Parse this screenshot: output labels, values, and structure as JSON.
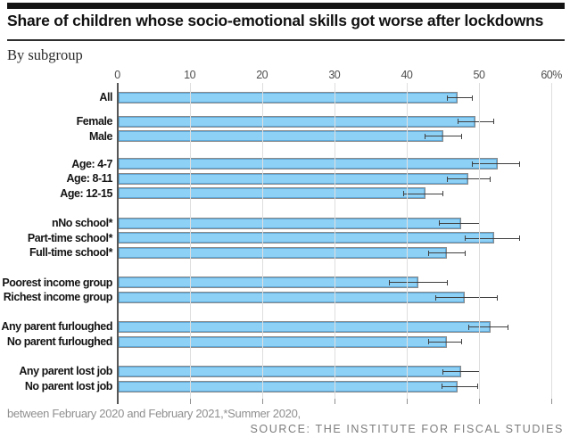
{
  "header": {
    "title": "Share of children whose socio-emotional skills got worse after lockdowns",
    "subtitle": "By subgroup"
  },
  "chart_data": {
    "type": "bar",
    "orientation": "horizontal",
    "title": "Share of children whose socio-emotional skills got worse after lockdowns",
    "subtitle": "By subgroup",
    "value_unit": "%",
    "xlim": [
      0,
      62.5
    ],
    "grid": true,
    "error_bars": true,
    "axis_position": "top",
    "axis_ticks": [
      0,
      10,
      20,
      30,
      40,
      50,
      60
    ],
    "axis_tick_labels": [
      "0",
      "10",
      "20",
      "30",
      "40",
      "50",
      "60%"
    ],
    "bar_color": "#8ED1F7",
    "bar_inner_edge_color": "#5FA9D9",
    "bar_outline_color": "#8A8A8A",
    "error_bar_color": "#3F3F3F",
    "groups": [
      {
        "rows": [
          {
            "label": "All",
            "value": 47,
            "ci_low": 45.5,
            "ci_high": 49
          }
        ]
      },
      {
        "rows": [
          {
            "label": "Female",
            "value": 49.5,
            "ci_low": 47,
            "ci_high": 52
          },
          {
            "label": "Male",
            "value": 45,
            "ci_low": 42.5,
            "ci_high": 47.5
          }
        ]
      },
      {
        "rows": [
          {
            "label": "Age: 4-7",
            "value": 52.5,
            "ci_low": 49,
            "ci_high": 55.5
          },
          {
            "label": "Age: 8-11",
            "value": 48.5,
            "ci_low": 45.5,
            "ci_high": 51.5
          },
          {
            "label": "Age: 12-15",
            "value": 42.5,
            "ci_low": 39.5,
            "ci_high": 45
          }
        ]
      },
      {
        "rows": [
          {
            "label": "nNo school*",
            "value": 47.5,
            "ci_low": 44.5,
            "ci_high": 50
          },
          {
            "label": "Part-time school*",
            "value": 52,
            "ci_low": 48,
            "ci_high": 55.5
          },
          {
            "label": "Full-time school*",
            "value": 45.5,
            "ci_low": 43,
            "ci_high": 48
          }
        ]
      },
      {
        "rows": [
          {
            "label": "Poorest income group",
            "value": 41.5,
            "ci_low": 37.5,
            "ci_high": 45.5
          },
          {
            "label": "Richest income group",
            "value": 48,
            "ci_low": 44,
            "ci_high": 52.5
          }
        ]
      },
      {
        "rows": [
          {
            "label": "Any parent furloughed",
            "value": 51.5,
            "ci_low": 48.5,
            "ci_high": 54
          },
          {
            "label": "No parent furloughed",
            "value": 45.5,
            "ci_low": 43,
            "ci_high": 47.5
          }
        ]
      },
      {
        "rows": [
          {
            "label": "Any parent lost job",
            "value": 47.5,
            "ci_low": 45,
            "ci_high": 50
          },
          {
            "label": "No parent lost job",
            "value": 47,
            "ci_low": 44.8,
            "ci_high": 49.7
          }
        ]
      }
    ]
  },
  "footer": {
    "note": "between February 2020 and February 2021,*Summer 2020,",
    "source": "SOURCE: THE INSTITUTE FOR FISCAL STUDIES"
  }
}
